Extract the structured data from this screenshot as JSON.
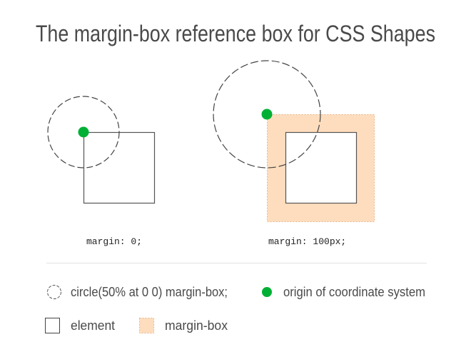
{
  "title": "The margin-box reference box for CSS Shapes",
  "examples": [
    {
      "code": "margin: 0;"
    },
    {
      "code": "margin: 100px;"
    }
  ],
  "legend": {
    "circle": "circle(50% at 0 0) margin-box;",
    "origin": "origin of coordinate system",
    "element": "element",
    "margin_box": "margin-box"
  },
  "colors": {
    "origin": "#00b035",
    "margin_box_fill": "#fdddbd",
    "margin_box_border": "#e8b48a",
    "stroke": "#444444"
  }
}
